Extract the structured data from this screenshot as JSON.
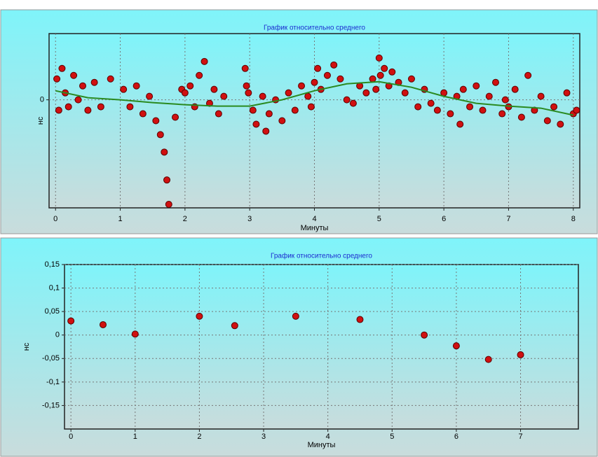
{
  "chart_data": [
    {
      "type": "scatter",
      "title": "График относительно среднего",
      "xlabel": "Минуты",
      "ylabel": "нс",
      "xlim": [
        -0.1,
        8.1
      ],
      "ylim": [
        -0.31,
        0.19
      ],
      "xticks": [
        0,
        1,
        2,
        3,
        4,
        5,
        6,
        7,
        8
      ],
      "yticks": [
        0
      ],
      "grid": true,
      "series": [
        {
          "type": "scatter",
          "color": "#d01010",
          "x": [
            0.02,
            0.05,
            0.1,
            0.15,
            0.2,
            0.28,
            0.35,
            0.42,
            0.5,
            0.6,
            0.7,
            0.85,
            1.05,
            1.15,
            1.25,
            1.35,
            1.45,
            1.55,
            1.62,
            1.68,
            1.72,
            1.75,
            1.85,
            1.95,
            2.0,
            2.08,
            2.15,
            2.22,
            2.3,
            2.38,
            2.45,
            2.52,
            2.6,
            2.93,
            2.95,
            2.98,
            3.05,
            3.1,
            3.2,
            3.25,
            3.3,
            3.4,
            3.5,
            3.6,
            3.7,
            3.8,
            3.9,
            3.95,
            4.0,
            4.05,
            4.1,
            4.2,
            4.3,
            4.4,
            4.5,
            4.6,
            4.7,
            4.8,
            4.9,
            4.95,
            5.0,
            5.02,
            5.08,
            5.15,
            5.2,
            5.3,
            5.4,
            5.5,
            5.6,
            5.7,
            5.8,
            5.9,
            6.0,
            6.1,
            6.2,
            6.25,
            6.3,
            6.4,
            6.5,
            6.6,
            6.7,
            6.8,
            6.9,
            6.95,
            7.0,
            7.1,
            7.2,
            7.3,
            7.4,
            7.5,
            7.6,
            7.7,
            7.8,
            7.9,
            8.0,
            8.05
          ],
          "values": [
            0.06,
            -0.03,
            0.09,
            0.02,
            -0.02,
            0.07,
            0.0,
            0.04,
            -0.03,
            0.05,
            -0.02,
            0.06,
            0.03,
            -0.02,
            0.04,
            -0.04,
            0.01,
            -0.06,
            -0.1,
            -0.15,
            -0.23,
            -0.3,
            -0.05,
            0.03,
            0.02,
            0.04,
            -0.02,
            0.07,
            0.11,
            -0.01,
            0.03,
            -0.04,
            0.01,
            0.09,
            0.04,
            0.02,
            -0.03,
            -0.07,
            0.01,
            -0.09,
            -0.04,
            0.0,
            -0.06,
            0.02,
            -0.03,
            0.04,
            0.01,
            -0.02,
            0.05,
            0.09,
            0.03,
            0.07,
            0.1,
            0.06,
            0.0,
            -0.01,
            0.04,
            0.02,
            0.06,
            0.03,
            0.12,
            0.07,
            0.09,
            0.04,
            0.08,
            0.05,
            0.02,
            0.06,
            -0.02,
            0.03,
            -0.01,
            -0.03,
            0.02,
            -0.04,
            0.01,
            -0.07,
            0.03,
            -0.02,
            0.04,
            -0.03,
            0.01,
            0.05,
            -0.04,
            0.0,
            -0.02,
            0.03,
            -0.05,
            0.07,
            -0.03,
            0.01,
            -0.06,
            -0.02,
            -0.07,
            0.02,
            -0.04,
            -0.03
          ]
        },
        {
          "type": "line",
          "color": "#2a8a20",
          "x": [
            0,
            0.5,
            1,
            1.5,
            2,
            2.5,
            3,
            3.5,
            4,
            4.5,
            5,
            5.5,
            6,
            6.5,
            7,
            7.5,
            8
          ],
          "values": [
            0.026,
            0.006,
            0,
            -0.008,
            -0.014,
            -0.018,
            -0.018,
            0,
            0.026,
            0.046,
            0.052,
            0.036,
            0.01,
            -0.01,
            -0.018,
            -0.024,
            -0.044
          ]
        }
      ]
    },
    {
      "type": "scatter",
      "title": "График относительно среднего",
      "xlabel": "Минуты",
      "ylabel": "нс",
      "xlim": [
        -0.1,
        7.9
      ],
      "ylim": [
        -0.2,
        0.15
      ],
      "xticks": [
        0,
        1,
        2,
        3,
        4,
        5,
        6,
        7
      ],
      "yticks": [
        {
          "value": 0.15,
          "label": "0,15"
        },
        {
          "value": 0.1,
          "label": "0,1"
        },
        {
          "value": 0.05,
          "label": "0,05"
        },
        0,
        {
          "value": -0.05,
          "label": "-0,05"
        },
        {
          "value": -0.1,
          "label": "-0,1"
        },
        {
          "value": -0.15,
          "label": "-0,15"
        }
      ],
      "grid": true,
      "series": [
        {
          "type": "scatter",
          "color": "#d01010",
          "x": [
            0,
            0.5,
            1,
            2,
            2.55,
            3.5,
            4.5,
            5.5,
            6,
            6.5,
            7
          ],
          "values": [
            0.03,
            0.022,
            0.002,
            0.04,
            0.02,
            0.04,
            0.033,
            0,
            -0.023,
            -0.052,
            -0.042
          ]
        }
      ]
    }
  ]
}
